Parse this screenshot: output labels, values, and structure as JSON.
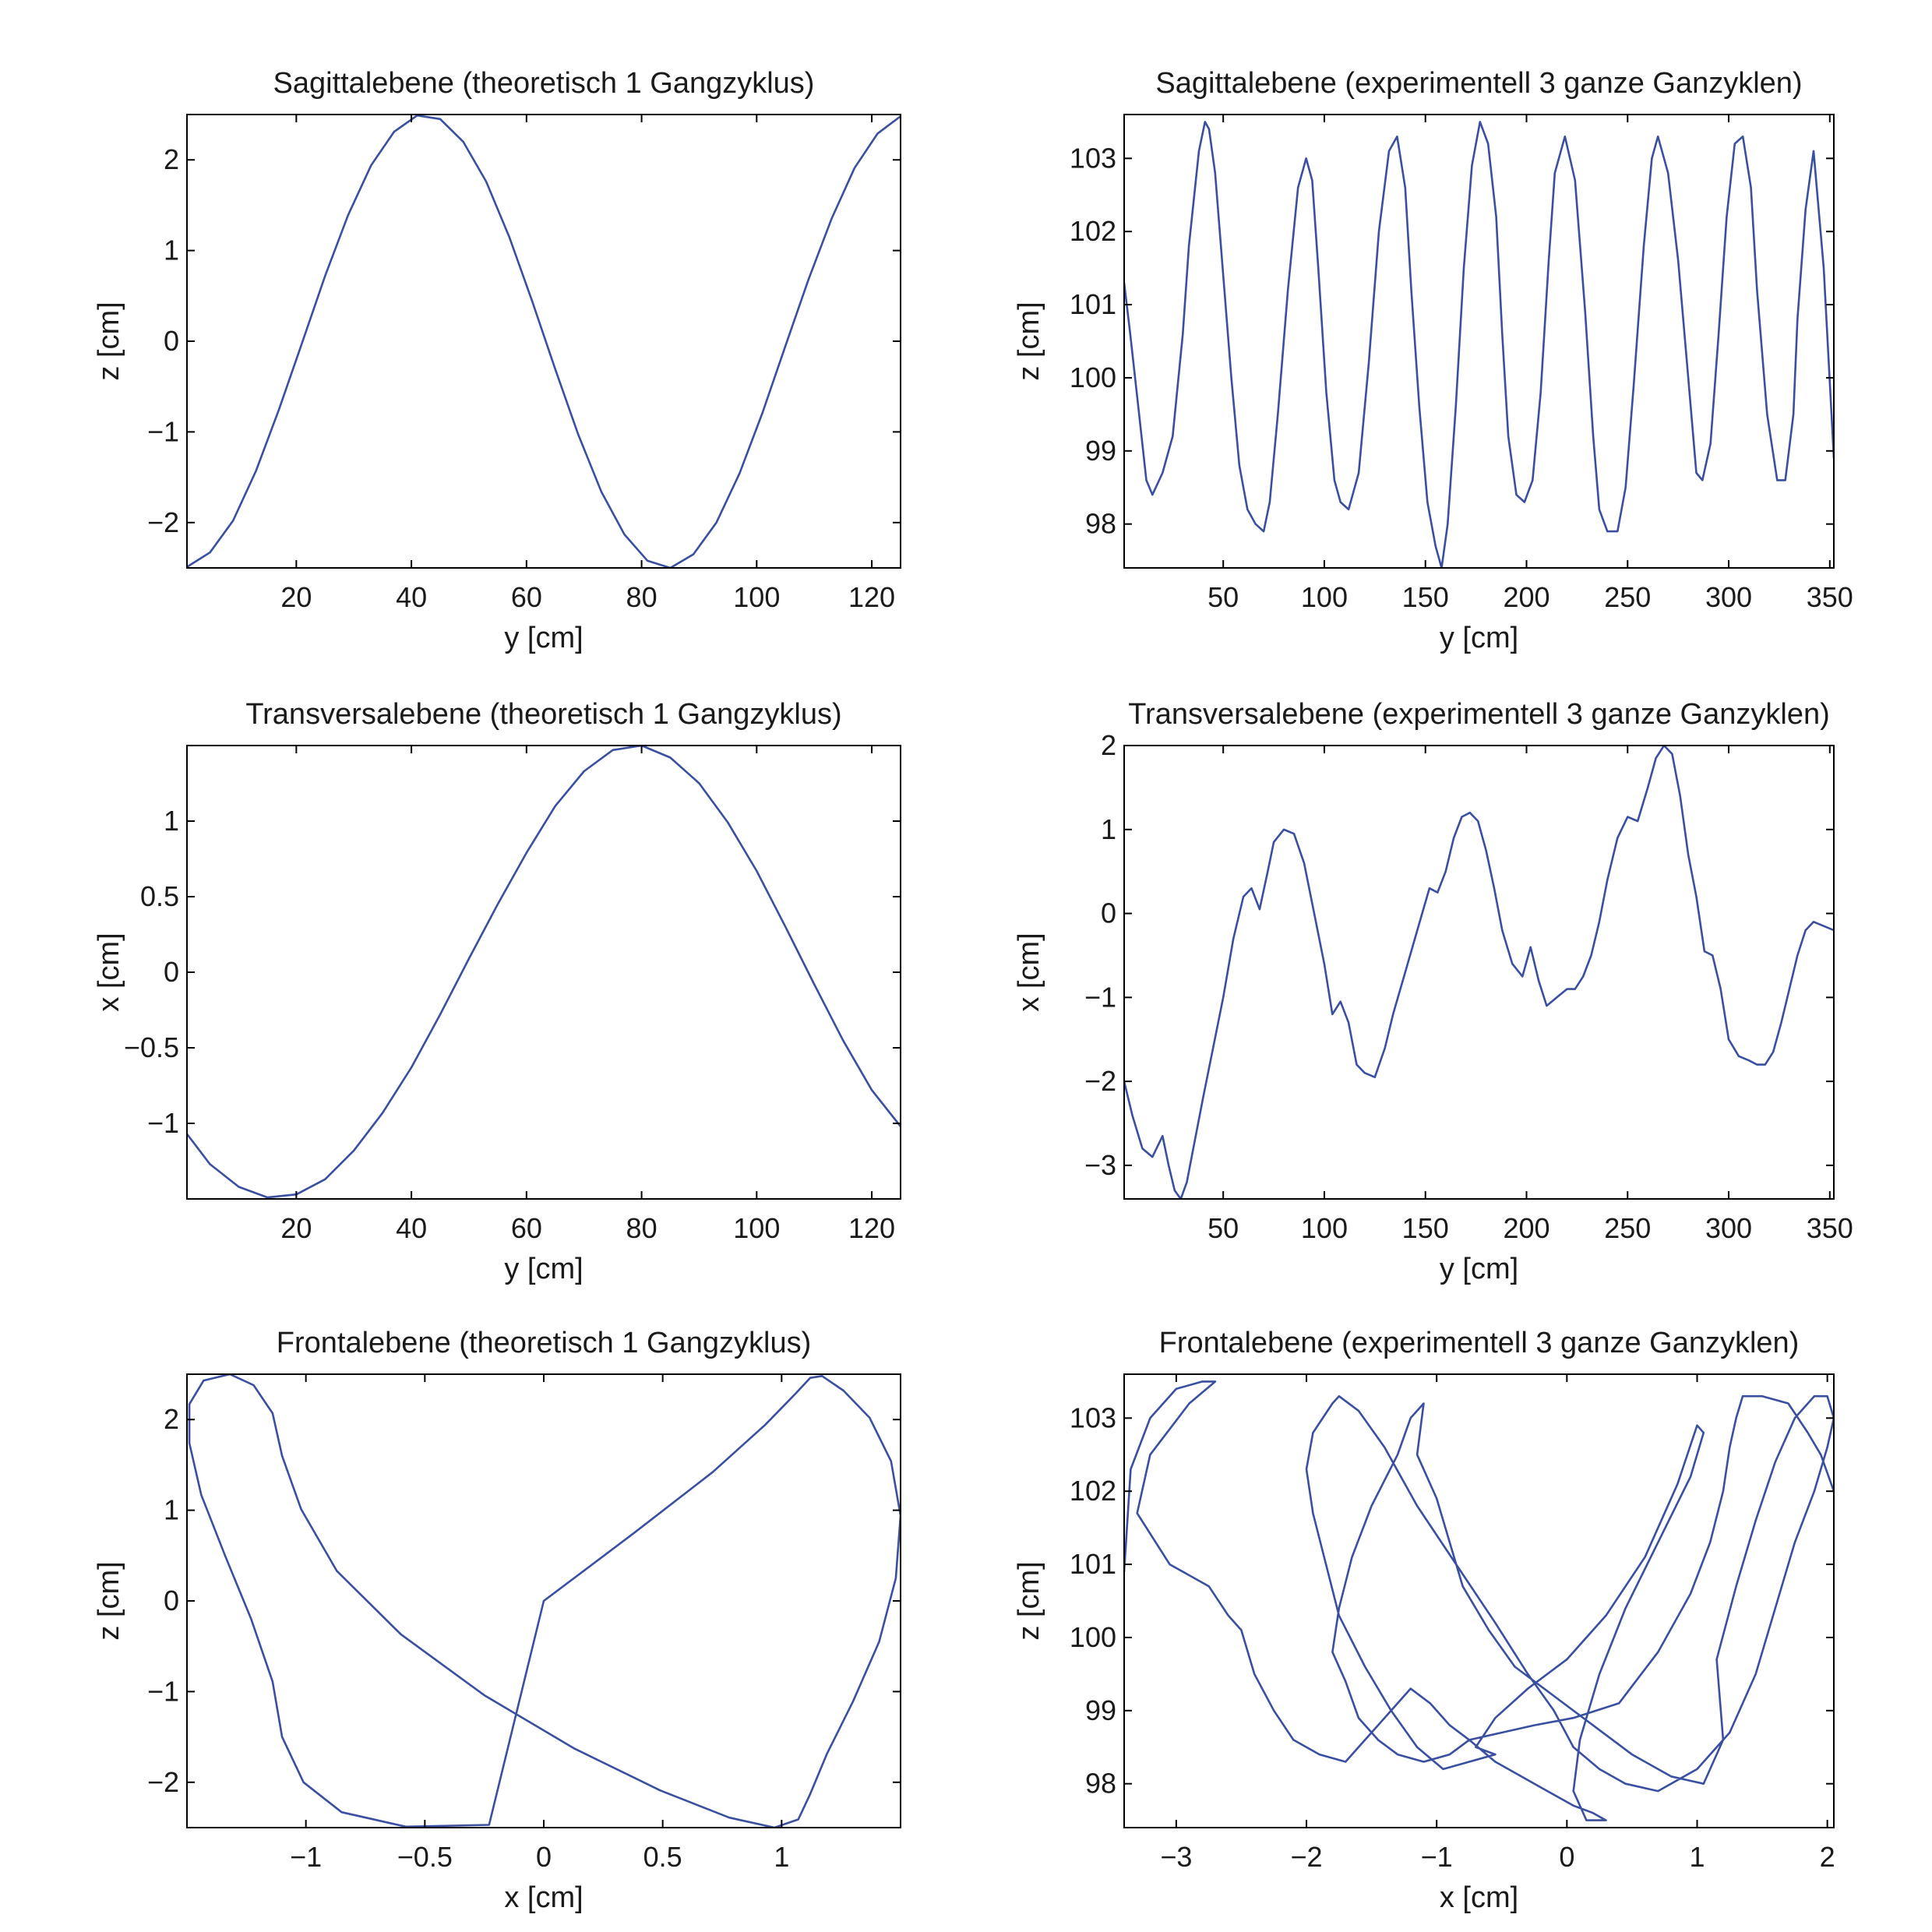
{
  "style": {
    "line_color": "#3a4fa0",
    "axis_color": "#000000",
    "background": "#ffffff"
  },
  "chart_data": [
    {
      "type": "line",
      "title": "Sagittalebene (theoretisch 1 Gangzyklus)",
      "xlabel": "y [cm]",
      "ylabel": "z [cm]",
      "xlim": [
        1,
        125
      ],
      "ylim": [
        -2.5,
        2.5
      ],
      "xticks": [
        20,
        40,
        60,
        80,
        100,
        120
      ],
      "xtick_labels": [
        "20",
        "40",
        "60",
        "80",
        "100",
        "120"
      ],
      "yticks": [
        -2,
        -1,
        0,
        1,
        2
      ],
      "ytick_labels": [
        "−2",
        "−1",
        "0",
        "1",
        "2"
      ],
      "grid": false,
      "series": [
        {
          "x": [
            1,
            5,
            9,
            13,
            17,
            21,
            25,
            29,
            33,
            37,
            41,
            45,
            49,
            53,
            57,
            61,
            65,
            69,
            73,
            77,
            81,
            85,
            89,
            93,
            97,
            101,
            105,
            109,
            113,
            117,
            121,
            125
          ],
          "y": [
            -2.49,
            -2.33,
            -1.98,
            -1.43,
            -0.75,
            -0.02,
            0.72,
            1.39,
            1.94,
            2.31,
            2.49,
            2.45,
            2.2,
            1.76,
            1.15,
            0.44,
            -0.31,
            -1.03,
            -1.66,
            -2.13,
            -2.42,
            -2.5,
            -2.35,
            -2.0,
            -1.46,
            -0.79,
            -0.05,
            0.68,
            1.35,
            1.91,
            2.29,
            2.48
          ]
        }
      ]
    },
    {
      "type": "line",
      "title": "Sagittalebene (experimentell 3 ganze Ganzyklen)",
      "xlabel": "y [cm]",
      "ylabel": "z [cm]",
      "xlim": [
        1,
        352
      ],
      "ylim": [
        97.4,
        103.6
      ],
      "xticks": [
        50,
        100,
        150,
        200,
        250,
        300,
        350
      ],
      "xtick_labels": [
        "50",
        "100",
        "150",
        "200",
        "250",
        "300",
        "350"
      ],
      "yticks": [
        98,
        99,
        100,
        101,
        102,
        103
      ],
      "ytick_labels": [
        "98",
        "99",
        "100",
        "101",
        "102",
        "103"
      ],
      "grid": false,
      "series": [
        {
          "x": [
            1,
            4,
            8,
            12,
            15,
            20,
            25,
            30,
            33,
            38,
            41,
            43,
            46,
            50,
            54,
            58,
            62,
            66,
            70,
            73,
            77,
            82,
            87,
            91,
            94,
            97,
            101,
            105,
            108,
            112,
            117,
            122,
            127,
            132,
            136,
            140,
            143,
            147,
            151,
            155,
            158,
            161,
            165,
            169,
            173,
            177,
            181,
            185,
            188,
            191,
            195,
            199,
            203,
            207,
            211,
            214,
            219,
            224,
            229,
            233,
            236,
            240,
            245,
            249,
            253,
            258,
            262,
            265,
            270,
            275,
            280,
            284,
            287,
            291,
            295,
            299,
            303,
            307,
            311,
            314,
            319,
            324,
            328,
            332,
            334,
            338,
            342,
            347,
            352
          ],
          "y": [
            101.3,
            100.6,
            99.6,
            98.6,
            98.4,
            98.7,
            99.2,
            100.6,
            101.8,
            103.1,
            103.5,
            103.4,
            102.8,
            101.4,
            100.0,
            98.8,
            98.2,
            98.0,
            97.9,
            98.3,
            99.5,
            101.2,
            102.6,
            103.0,
            102.7,
            101.5,
            99.8,
            98.6,
            98.3,
            98.2,
            98.7,
            100.2,
            102.0,
            103.1,
            103.3,
            102.6,
            101.2,
            99.6,
            98.3,
            97.7,
            97.4,
            98.0,
            99.6,
            101.5,
            102.9,
            103.5,
            103.2,
            102.2,
            100.6,
            99.2,
            98.4,
            98.3,
            98.6,
            99.8,
            101.6,
            102.8,
            103.3,
            102.7,
            100.9,
            99.2,
            98.2,
            97.9,
            97.9,
            98.5,
            99.9,
            101.8,
            103.0,
            103.3,
            102.8,
            101.6,
            100.0,
            98.7,
            98.6,
            99.1,
            100.6,
            102.2,
            103.2,
            103.3,
            102.6,
            101.2,
            99.5,
            98.6,
            98.6,
            99.5,
            100.8,
            102.3,
            103.1,
            101.5,
            98.9
          ]
        }
      ]
    },
    {
      "type": "line",
      "title": "Transversalebene (theoretisch 1 Gangzyklus)",
      "xlabel": "y [cm]",
      "ylabel": "x [cm]",
      "xlim": [
        1,
        125
      ],
      "ylim": [
        -1.5,
        1.5
      ],
      "xticks": [
        20,
        40,
        60,
        80,
        100,
        120
      ],
      "xtick_labels": [
        "20",
        "40",
        "60",
        "80",
        "100",
        "120"
      ],
      "yticks": [
        -1,
        -0.5,
        0,
        0.5,
        1
      ],
      "ytick_labels": [
        "−1",
        "−0.5",
        "0",
        "0.5",
        "1"
      ],
      "grid": false,
      "series": [
        {
          "x": [
            1,
            5,
            10,
            15,
            20,
            25,
            30,
            35,
            40,
            45,
            50,
            55,
            60,
            65,
            70,
            75,
            80,
            85,
            90,
            95,
            100,
            105,
            110,
            115,
            120,
            125
          ],
          "y": [
            -1.07,
            -1.27,
            -1.42,
            -1.49,
            -1.47,
            -1.37,
            -1.18,
            -0.93,
            -0.63,
            -0.28,
            0.09,
            0.45,
            0.79,
            1.1,
            1.33,
            1.47,
            1.5,
            1.42,
            1.25,
            0.99,
            0.67,
            0.3,
            -0.08,
            -0.45,
            -0.78,
            -1.02
          ]
        }
      ]
    },
    {
      "type": "line",
      "title": "Transversalebene (experimentell  3 ganze Ganzyklen)",
      "xlabel": "y [cm]",
      "ylabel": "x [cm]",
      "xlim": [
        1,
        352
      ],
      "ylim": [
        -3.4,
        2.0
      ],
      "xticks": [
        50,
        100,
        150,
        200,
        250,
        300,
        350
      ],
      "xtick_labels": [
        "50",
        "100",
        "150",
        "200",
        "250",
        "300",
        "350"
      ],
      "yticks": [
        -3,
        -2,
        -1,
        0,
        1,
        2
      ],
      "ytick_labels": [
        "−3",
        "−2",
        "−1",
        "0",
        "1",
        "2"
      ],
      "grid": false,
      "series": [
        {
          "x": [
            1,
            5,
            10,
            15,
            20,
            23,
            26,
            29,
            32,
            36,
            40,
            45,
            50,
            55,
            60,
            64,
            68,
            72,
            75,
            80,
            85,
            90,
            95,
            100,
            104,
            108,
            112,
            116,
            120,
            125,
            130,
            134,
            140,
            146,
            152,
            156,
            160,
            164,
            168,
            172,
            176,
            180,
            184,
            188,
            193,
            198,
            202,
            206,
            210,
            215,
            220,
            224,
            228,
            232,
            236,
            240,
            245,
            250,
            255,
            260,
            264,
            268,
            272,
            276,
            280,
            284,
            288,
            292,
            296,
            300,
            305,
            310,
            314,
            318,
            322,
            326,
            330,
            334,
            338,
            342,
            347,
            352
          ],
          "y": [
            -2.0,
            -2.4,
            -2.8,
            -2.9,
            -2.65,
            -3.0,
            -3.3,
            -3.4,
            -3.2,
            -2.7,
            -2.2,
            -1.6,
            -1.0,
            -0.3,
            0.2,
            0.3,
            0.05,
            0.5,
            0.85,
            1.0,
            0.95,
            0.6,
            0.0,
            -0.6,
            -1.2,
            -1.05,
            -1.3,
            -1.8,
            -1.9,
            -1.95,
            -1.6,
            -1.2,
            -0.7,
            -0.2,
            0.3,
            0.25,
            0.5,
            0.9,
            1.15,
            1.2,
            1.1,
            0.75,
            0.3,
            -0.2,
            -0.6,
            -0.75,
            -0.4,
            -0.8,
            -1.1,
            -1.0,
            -0.9,
            -0.9,
            -0.75,
            -0.5,
            -0.1,
            0.4,
            0.9,
            1.15,
            1.1,
            1.5,
            1.85,
            2.0,
            1.9,
            1.4,
            0.7,
            0.2,
            -0.45,
            -0.5,
            -0.9,
            -1.5,
            -1.7,
            -1.75,
            -1.8,
            -1.8,
            -1.65,
            -1.3,
            -0.9,
            -0.5,
            -0.2,
            -0.1,
            -0.15,
            -0.2
          ]
        }
      ]
    },
    {
      "type": "line",
      "title": "Frontalebene (theoretisch 1 Gangzyklus)",
      "xlabel": "x [cm]",
      "ylabel": "z [cm]",
      "xlim": [
        -1.5,
        1.5
      ],
      "ylim": [
        -2.5,
        2.5
      ],
      "xticks": [
        -1,
        -0.5,
        0,
        0.5,
        1
      ],
      "xtick_labels": [
        "−1",
        "−0.5",
        "0",
        "0.5",
        "1"
      ],
      "yticks": [
        -2,
        -1,
        0,
        1,
        2
      ],
      "ytick_labels": [
        "−2",
        "−1",
        "0",
        "1",
        "2"
      ],
      "grid": false,
      "series": [
        {
          "x": [
            0,
            0.38,
            0.71,
            0.93,
            1.06,
            1.12,
            1.17,
            1.26,
            1.37,
            1.46,
            1.5,
            1.48,
            1.41,
            1.3,
            1.19,
            1.12,
            1.07,
            0.97,
            0.78,
            0.49,
            0.13,
            -0.25,
            -0.6,
            -0.87,
            -1.02,
            -1.1,
            -1.14,
            -1.22,
            -1.32,
            -1.43,
            -1.49,
            -1.49,
            -1.44,
            -1.34,
            -1.23,
            -1.14,
            -1.1,
            -1.01,
            -0.85,
            -0.58,
            -0.23,
            0
          ],
          "y": [
            0,
            0.75,
            1.42,
            1.94,
            2.29,
            2.46,
            2.48,
            2.32,
            2.02,
            1.54,
            0.94,
            0.25,
            -0.45,
            -1.11,
            -1.69,
            -2.13,
            -2.41,
            -2.5,
            -2.39,
            -2.09,
            -1.63,
            -1.04,
            -0.37,
            0.33,
            1.01,
            1.6,
            2.07,
            2.38,
            2.5,
            2.43,
            2.17,
            1.74,
            1.17,
            0.5,
            -0.2,
            -0.89,
            -1.5,
            -2.0,
            -2.33,
            -2.49,
            -2.47,
            0
          ]
        }
      ]
    },
    {
      "type": "line",
      "title": "Frontalebene (experimentell  3 ganze Ganzyklen)",
      "xlabel": "x [cm]",
      "ylabel": "z [cm]",
      "xlim": [
        -3.4,
        2.05
      ],
      "ylim": [
        97.4,
        103.6
      ],
      "xticks": [
        -3,
        -2,
        -1,
        0,
        1,
        2
      ],
      "xtick_labels": [
        "−3",
        "−2",
        "−1",
        "0",
        "1",
        "2"
      ],
      "yticks": [
        98,
        99,
        100,
        101,
        102,
        103
      ],
      "ytick_labels": [
        "98",
        "99",
        "100",
        "101",
        "102",
        "103"
      ],
      "grid": false,
      "series": [
        {
          "x": [
            -3.4,
            -3.35,
            -3.2,
            -3.0,
            -2.8,
            -2.7,
            -2.9,
            -3.2,
            -3.3,
            -3.05,
            -2.75,
            -2.6,
            -2.5,
            -2.4,
            -2.25,
            -2.1,
            -1.9,
            -1.7,
            -1.55,
            -1.35,
            -1.2,
            -1.05,
            -0.9,
            -0.75,
            -0.55,
            -0.35,
            -0.15,
            0.05,
            0.2,
            0.3,
            0.15,
            0.05,
            0.1,
            0.25,
            0.45,
            0.7,
            0.95,
            1.05,
            1.0,
            0.85,
            0.6,
            0.3,
            0.0,
            -0.3,
            -0.55,
            -0.7,
            -0.55,
            -0.75,
            -0.95,
            -1.15,
            -1.35,
            -1.55,
            -1.75,
            -1.85,
            -1.95,
            -2.0,
            -1.95,
            -1.8,
            -1.75,
            -1.6,
            -1.4,
            -1.15,
            -0.85,
            -0.55,
            -0.3,
            -0.1,
            0.05,
            0.25,
            0.45,
            0.7,
            1.0,
            1.25,
            1.45,
            1.6,
            1.75,
            1.9,
            2.0,
            2.05,
            2.0,
            1.9,
            1.75,
            1.6,
            1.45,
            1.3,
            1.15,
            1.2,
            1.05,
            0.8,
            0.5,
            0.2,
            -0.1,
            -0.4,
            -0.6,
            -0.8,
            -0.9,
            -1.0,
            -1.15,
            -1.1,
            -1.2,
            -1.3,
            -1.5,
            -1.65,
            -1.75,
            -1.8,
            -1.7,
            -1.6,
            -1.45,
            -1.3,
            -1.1,
            -0.9,
            -0.75,
            -0.5,
            -0.25,
            0.05,
            0.4,
            0.7,
            0.95,
            1.1,
            1.2,
            1.25,
            1.3,
            1.35,
            1.5,
            1.7,
            1.85,
            1.95,
            2.05
          ],
          "y": [
            100.9,
            102.3,
            103.0,
            103.4,
            103.5,
            103.5,
            103.2,
            102.5,
            101.7,
            101.0,
            100.7,
            100.3,
            100.1,
            99.5,
            99.0,
            98.6,
            98.4,
            98.3,
            98.6,
            99.0,
            99.3,
            99.1,
            98.8,
            98.6,
            98.3,
            98.1,
            97.9,
            97.7,
            97.6,
            97.5,
            97.5,
            97.9,
            98.6,
            99.5,
            100.4,
            101.3,
            102.2,
            102.8,
            102.9,
            102.1,
            101.1,
            100.3,
            99.7,
            99.3,
            98.9,
            98.5,
            98.4,
            98.3,
            98.2,
            98.5,
            99.0,
            99.6,
            100.3,
            101.0,
            101.7,
            102.3,
            102.8,
            103.2,
            103.3,
            103.1,
            102.6,
            101.8,
            101.0,
            100.2,
            99.5,
            99.0,
            98.5,
            98.2,
            98.0,
            97.9,
            98.2,
            98.7,
            99.5,
            100.4,
            101.3,
            102.0,
            102.6,
            103.0,
            103.3,
            103.3,
            103.0,
            102.4,
            101.6,
            100.7,
            99.7,
            98.6,
            98.0,
            98.1,
            98.4,
            98.8,
            99.2,
            99.6,
            100.1,
            100.7,
            101.3,
            101.9,
            102.5,
            103.2,
            103.0,
            102.5,
            101.8,
            101.1,
            100.4,
            99.8,
            99.4,
            98.9,
            98.6,
            98.4,
            98.3,
            98.4,
            98.6,
            98.7,
            98.8,
            98.9,
            99.1,
            99.8,
            100.6,
            101.3,
            102.0,
            102.6,
            103.0,
            103.3,
            103.3,
            103.2,
            102.8,
            102.5,
            102.0
          ]
        }
      ]
    }
  ]
}
